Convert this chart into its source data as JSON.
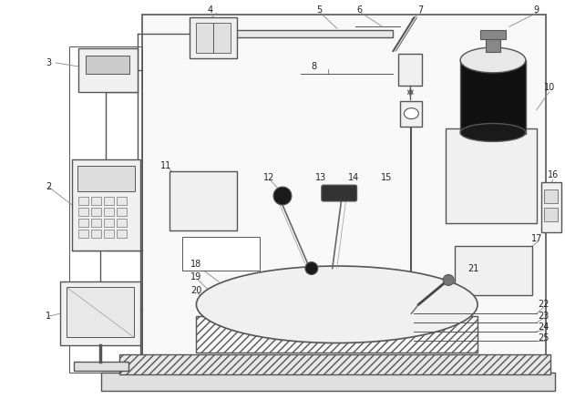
{
  "fig_width": 6.2,
  "fig_height": 4.38,
  "lc": "#555555",
  "lc2": "#333333",
  "fc_light": "#f0f0f0",
  "fc_dark": "#111111",
  "fc_white": "#ffffff",
  "fc_gray": "#cccccc",
  "fc_hatch": "#aaaaaa"
}
